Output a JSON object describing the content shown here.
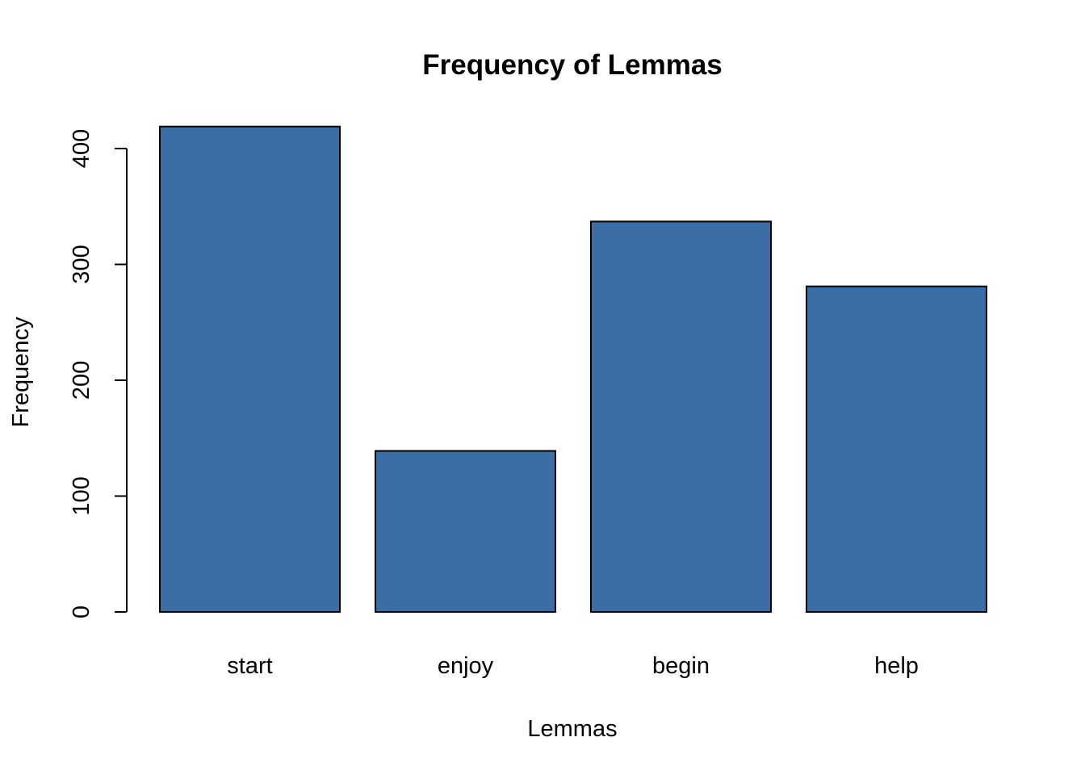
{
  "chart_data": {
    "type": "bar",
    "title": "Frequency of Lemmas",
    "xlabel": "Lemmas",
    "ylabel": "Frequency",
    "categories": [
      "start",
      "enjoy",
      "begin",
      "help"
    ],
    "values": [
      419,
      139,
      337,
      281
    ],
    "ylim": [
      0,
      400
    ],
    "yticks": [
      "0",
      "100",
      "200",
      "300",
      "400"
    ],
    "bar_color": "#3a6ea5",
    "grid": false,
    "legend": "none"
  }
}
